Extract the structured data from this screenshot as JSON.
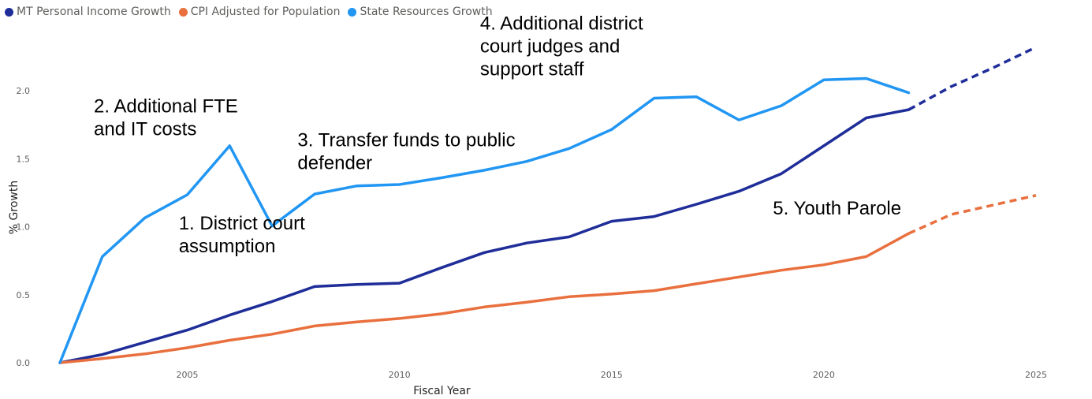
{
  "chart_data": {
    "type": "line",
    "legend_position": "top-left",
    "xlabel": "Fiscal Year",
    "ylabel": "% Growth",
    "xlim": [
      2002,
      2026.3
    ],
    "ylim": [
      0,
      2.4
    ],
    "x_ticks": [
      {
        "value": 2005,
        "label": "2005"
      },
      {
        "value": 2010,
        "label": "2010"
      },
      {
        "value": 2015,
        "label": "2015"
      },
      {
        "value": 2020,
        "label": "2020"
      },
      {
        "value": 2025,
        "label": "2025"
      }
    ],
    "y_ticks": [
      {
        "value": 0,
        "label": "0.0"
      },
      {
        "value": 0.5,
        "label": "0.5"
      },
      {
        "value": 1.0,
        "label": "1.0"
      },
      {
        "value": 1.5,
        "label": "1.5"
      },
      {
        "value": 2.0,
        "label": "2.0"
      }
    ],
    "grid": {
      "x": false,
      "y": false
    },
    "legend": [
      {
        "name": "MT Personal Income Growth",
        "color": "#1f2d99"
      },
      {
        "name": "CPI Adjusted for Population",
        "color": "#e9703e"
      },
      {
        "name": "State Resources Growth",
        "color": "#2196f3"
      }
    ],
    "series": [
      {
        "name": "MT Personal Income Growth",
        "color": "#1f2d99",
        "points": [
          [
            2002,
            0.0
          ],
          [
            2003,
            0.06
          ],
          [
            2004,
            0.15
          ],
          [
            2005,
            0.24
          ],
          [
            2006,
            0.35
          ],
          [
            2007,
            0.45
          ],
          [
            2008,
            0.56
          ],
          [
            2009,
            0.575
          ],
          [
            2010,
            0.585
          ],
          [
            2011,
            0.7
          ],
          [
            2012,
            0.81
          ],
          [
            2013,
            0.88
          ],
          [
            2014,
            0.925
          ],
          [
            2015,
            1.04
          ],
          [
            2016,
            1.075
          ],
          [
            2017,
            1.165
          ],
          [
            2018,
            1.26
          ],
          [
            2019,
            1.39
          ],
          [
            2020,
            1.595
          ],
          [
            2021,
            1.8
          ],
          [
            2022,
            1.86
          ]
        ],
        "projected": [
          [
            2022,
            1.86
          ],
          [
            2023,
            2.03
          ],
          [
            2024,
            2.17
          ],
          [
            2025,
            2.32
          ]
        ]
      },
      {
        "name": "CPI Adjusted for Population",
        "color": "#e9703e",
        "points": [
          [
            2002,
            0.0
          ],
          [
            2003,
            0.03
          ],
          [
            2004,
            0.065
          ],
          [
            2005,
            0.11
          ],
          [
            2006,
            0.165
          ],
          [
            2007,
            0.21
          ],
          [
            2008,
            0.27
          ],
          [
            2009,
            0.3
          ],
          [
            2010,
            0.325
          ],
          [
            2011,
            0.36
          ],
          [
            2012,
            0.41
          ],
          [
            2013,
            0.445
          ],
          [
            2014,
            0.485
          ],
          [
            2015,
            0.505
          ],
          [
            2016,
            0.53
          ],
          [
            2017,
            0.58
          ],
          [
            2018,
            0.63
          ],
          [
            2019,
            0.68
          ],
          [
            2020,
            0.72
          ],
          [
            2021,
            0.78
          ],
          [
            2022,
            0.95
          ]
        ],
        "projected": [
          [
            2022,
            0.95
          ],
          [
            2023,
            1.09
          ],
          [
            2024,
            1.16
          ],
          [
            2025,
            1.23
          ]
        ]
      },
      {
        "name": "State Resources Growth",
        "color": "#2196f3",
        "points": [
          [
            2002,
            0.0
          ],
          [
            2003,
            0.78
          ],
          [
            2004,
            1.065
          ],
          [
            2005,
            1.235
          ],
          [
            2006,
            1.595
          ],
          [
            2007,
            1.005
          ],
          [
            2008,
            1.24
          ],
          [
            2009,
            1.3
          ],
          [
            2010,
            1.31
          ],
          [
            2011,
            1.36
          ],
          [
            2012,
            1.415
          ],
          [
            2013,
            1.48
          ],
          [
            2014,
            1.575
          ],
          [
            2015,
            1.715
          ],
          [
            2016,
            1.945
          ],
          [
            2017,
            1.955
          ],
          [
            2018,
            1.785
          ],
          [
            2019,
            1.89
          ],
          [
            2020,
            2.08
          ],
          [
            2021,
            2.09
          ],
          [
            2022,
            1.985
          ]
        ]
      }
    ],
    "annotations": [
      {
        "lines": [
          "1. District court",
          "assumption"
        ],
        "x": 2004.8,
        "y": 0.98
      },
      {
        "lines": [
          "2. Additional FTE",
          "and IT costs"
        ],
        "x": 2002.8,
        "y": 1.84
      },
      {
        "lines": [
          "3. Transfer funds to public",
          "defender"
        ],
        "x": 2007.6,
        "y": 1.59
      },
      {
        "lines": [
          "4. Additional district",
          "court judges and",
          "support staff"
        ],
        "x": 2011.9,
        "y": 2.45
      },
      {
        "lines": [
          "5. Youth Parole"
        ],
        "x": 2018.8,
        "y": 1.09
      }
    ]
  }
}
